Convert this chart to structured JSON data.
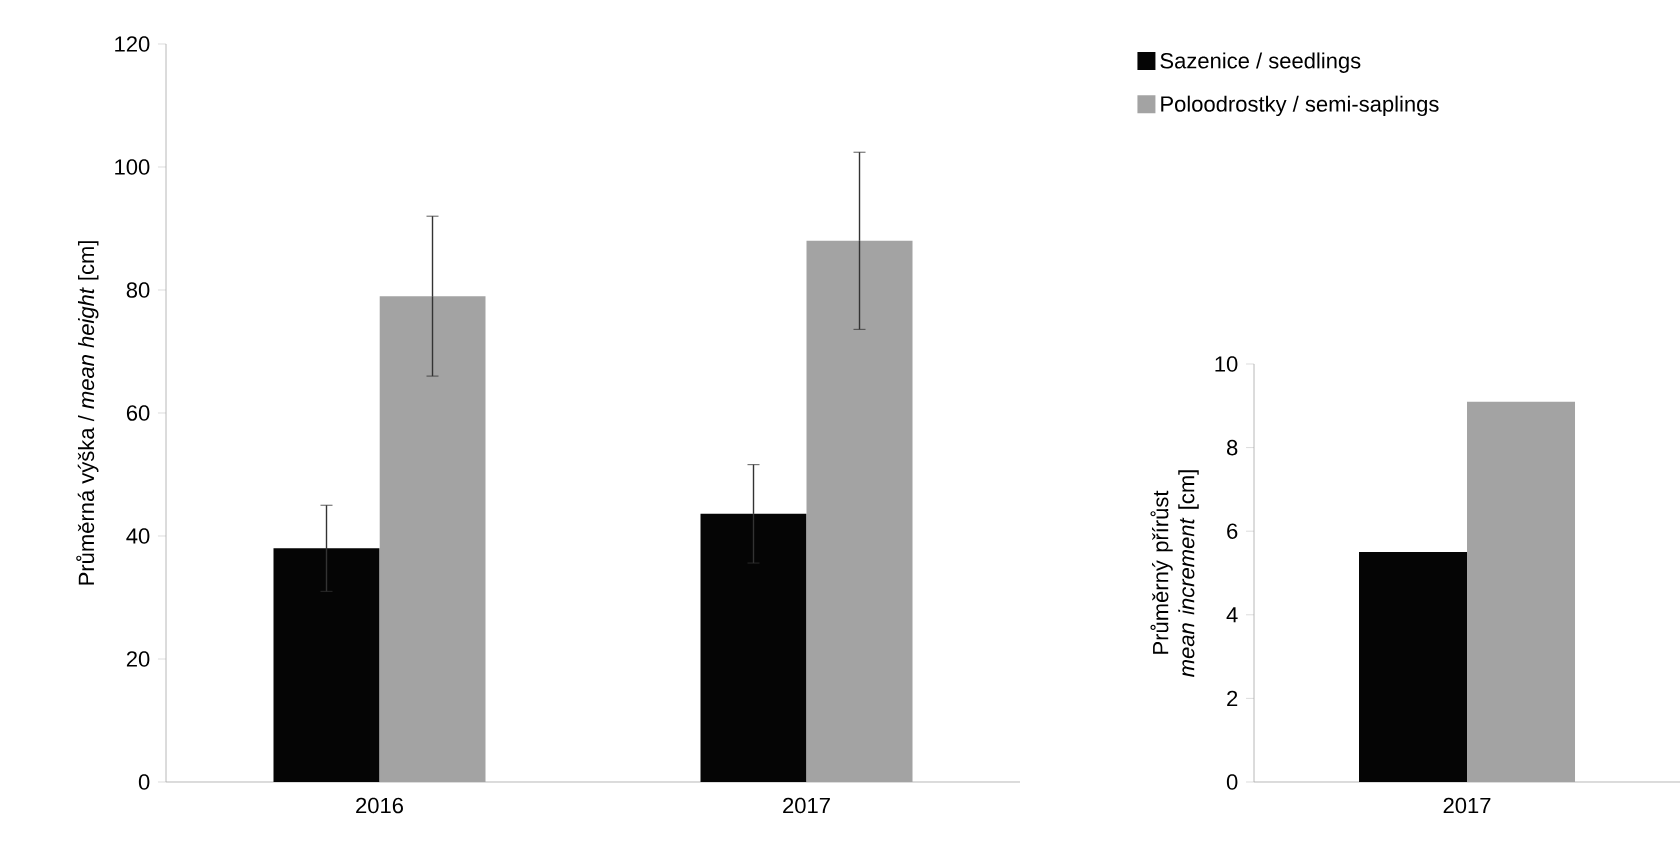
{
  "chart_data": [
    {
      "type": "bar",
      "ylabel": "Průměrná výška / *mean height* [cm]",
      "categories": [
        "2016",
        "2017"
      ],
      "ylim": [
        0,
        120
      ],
      "yticks": [
        0,
        20,
        40,
        60,
        80,
        100,
        120
      ],
      "legend": "top right",
      "series": [
        {
          "name": "Sazenice / seedlings",
          "color": "#050505",
          "values": [
            38,
            43.6
          ],
          "errors": [
            7,
            8
          ]
        },
        {
          "name": "Poloodrostky / semi-saplings",
          "color": "#a3a3a3",
          "values": [
            79,
            88
          ],
          "errors": [
            13,
            14.4
          ]
        }
      ]
    },
    {
      "type": "bar",
      "ylabel": "Průměrný přírůst *mean increment* [cm]",
      "categories": [
        "2017"
      ],
      "ylim": [
        0,
        10
      ],
      "yticks": [
        0,
        2,
        4,
        6,
        8,
        10
      ],
      "series": [
        {
          "color": "#050505",
          "values": [
            5.5
          ]
        },
        {
          "color": "#a3a3a3",
          "values": [
            9.1
          ]
        }
      ]
    }
  ]
}
